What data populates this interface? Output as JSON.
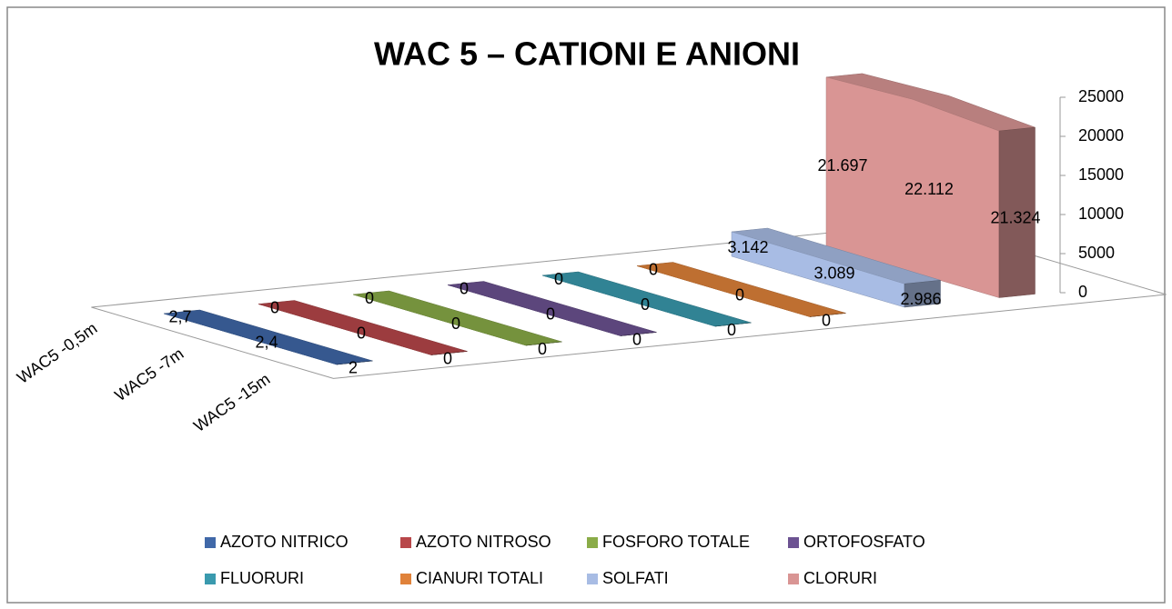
{
  "chart_data": {
    "type": "area",
    "title": "WAC 5 – CATIONI E ANIONI",
    "categories": [
      "WAC5 -0,5m",
      "WAC5 -7m",
      "WAC5 -15m"
    ],
    "series": [
      {
        "name": "AZOTO NITRICO",
        "color": "#4068a8",
        "values": [
          2.7,
          2.4,
          2
        ],
        "value_labels": [
          "2,7",
          "2,4",
          "2"
        ]
      },
      {
        "name": "AZOTO NITROSO",
        "color": "#b8474a",
        "values": [
          0,
          0,
          0
        ]
      },
      {
        "name": "FOSFORO TOTALE",
        "color": "#8aac48",
        "values": [
          0,
          0,
          0
        ]
      },
      {
        "name": "ORTOFOSFATO",
        "color": "#6c5292",
        "values": [
          0,
          0,
          0
        ]
      },
      {
        "name": "FLUORURI",
        "color": "#3a9aae",
        "values": [
          0,
          0,
          0
        ]
      },
      {
        "name": "CIANURI TOTALI",
        "color": "#e0823a",
        "values": [
          0,
          0,
          0
        ]
      },
      {
        "name": "SOLFATI",
        "color": "#a8bce4",
        "values": [
          3142,
          3089,
          2986
        ],
        "value_labels": [
          "3.142",
          "3.089",
          "2.986"
        ]
      },
      {
        "name": "CLORURI",
        "color": "#d99594",
        "values": [
          21697,
          22112,
          21324
        ],
        "value_labels": [
          "21.697",
          "22.112",
          "21.324"
        ]
      }
    ],
    "ylim": [
      0,
      25000
    ],
    "yticks": [
      0,
      5000,
      10000,
      15000,
      20000,
      25000
    ]
  }
}
